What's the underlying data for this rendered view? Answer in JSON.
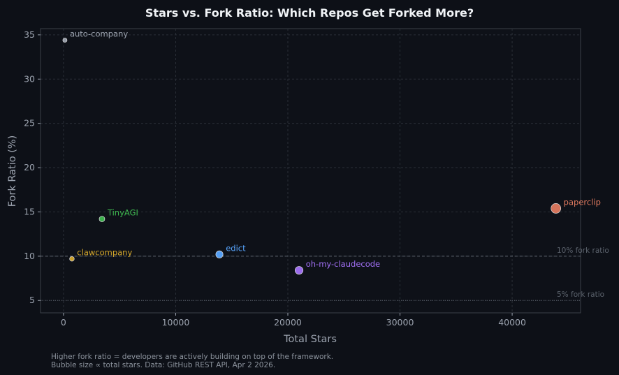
{
  "chart_data": {
    "type": "scatter",
    "title": "Stars vs. Fork Ratio: Which Repos Get Forked More?",
    "xlabel": "Total Stars",
    "ylabel": "Fork Ratio (%)",
    "xlim": [
      -2050,
      46100
    ],
    "ylim": [
      3.6,
      35.7
    ],
    "xticks": [
      0,
      10000,
      20000,
      30000,
      40000
    ],
    "yticks": [
      5,
      10,
      15,
      20,
      25,
      30,
      35
    ],
    "grid": true,
    "bubble_size": "proportional to total stars",
    "points": [
      {
        "label": "auto-company",
        "x": 125,
        "y": 34.4,
        "color": "#9ca3af"
      },
      {
        "label": "TinyAGI",
        "x": 3430,
        "y": 14.2,
        "color": "#3fb950"
      },
      {
        "label": "clawcompany",
        "x": 750,
        "y": 9.7,
        "color": "#d4a72c"
      },
      {
        "label": "edict",
        "x": 13900,
        "y": 10.2,
        "color": "#58a6ff"
      },
      {
        "label": "oh-my-claudecode",
        "x": 21000,
        "y": 8.4,
        "color": "#a371f7"
      },
      {
        "label": "paperclip",
        "x": 43900,
        "y": 15.4,
        "color": "#e07a5f"
      }
    ],
    "reference_lines": [
      {
        "y": 10,
        "label": "10% fork ratio",
        "style": "dashed"
      },
      {
        "y": 5,
        "label": "5% fork ratio",
        "style": "dotted"
      }
    ],
    "footnote": [
      "Higher fork ratio = developers are actively building on top of the framework.",
      "Bubble size ∝ total stars. Data: GitHub REST API, Apr 2 2026."
    ]
  }
}
